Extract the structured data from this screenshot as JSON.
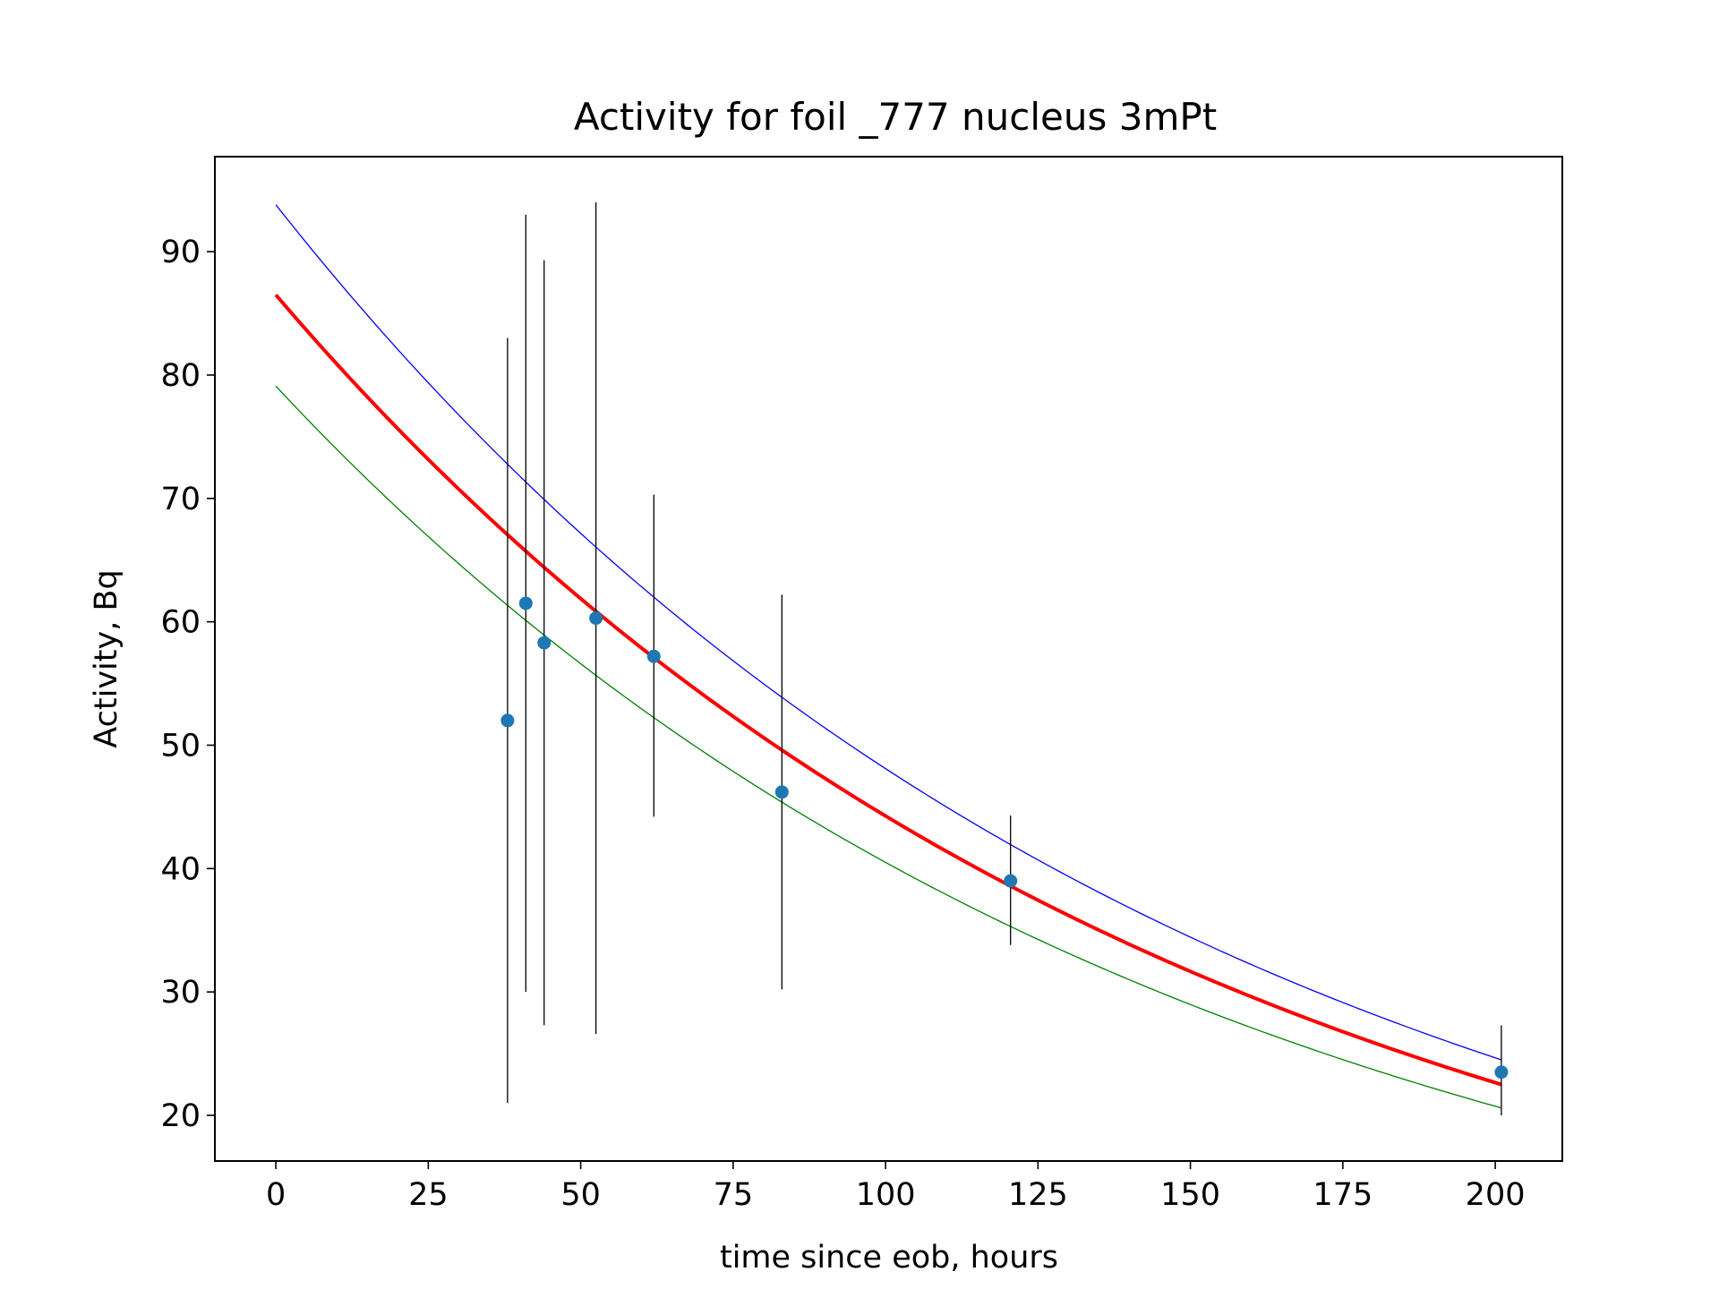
{
  "chart_data": {
    "type": "scatter",
    "title": "Activity for foil _777 nucleus 3mPt",
    "xlabel": "time since eob, hours",
    "ylabel": "Activity, Bq",
    "xlim": [
      -10,
      211
    ],
    "ylim": [
      16.3,
      97.7
    ],
    "xticks": [
      0,
      25,
      50,
      75,
      100,
      125,
      150,
      175,
      200
    ],
    "yticks": [
      20,
      30,
      40,
      50,
      60,
      70,
      80,
      90
    ],
    "grid": false,
    "legend": "none",
    "points": {
      "color": "#1f77b4",
      "x": [
        38,
        41,
        44,
        52.5,
        62,
        83,
        120.5,
        201
      ],
      "y": [
        52,
        61.5,
        58.3,
        60.3,
        57.2,
        46.2,
        39,
        23.5
      ],
      "yerr_low": [
        21,
        30,
        27.3,
        26.6,
        44.2,
        30.2,
        33.8,
        20
      ],
      "yerr_high": [
        83,
        93,
        89.3,
        94,
        70.3,
        62.2,
        44.3,
        27.3
      ],
      "errorbar_color": "#000000"
    },
    "curves": [
      {
        "color": "#ff0000",
        "role": "fit",
        "A0": 86.5,
        "A_end": 22.5,
        "x_start": 0,
        "x_end": 201
      },
      {
        "color": "#0000ff",
        "role": "upper",
        "A0": 93.8,
        "A_end": 24.5,
        "x_start": 0,
        "x_end": 201
      },
      {
        "color": "#008000",
        "role": "lower",
        "A0": 79.1,
        "A_end": 20.6,
        "x_start": 0,
        "x_end": 201
      }
    ]
  }
}
